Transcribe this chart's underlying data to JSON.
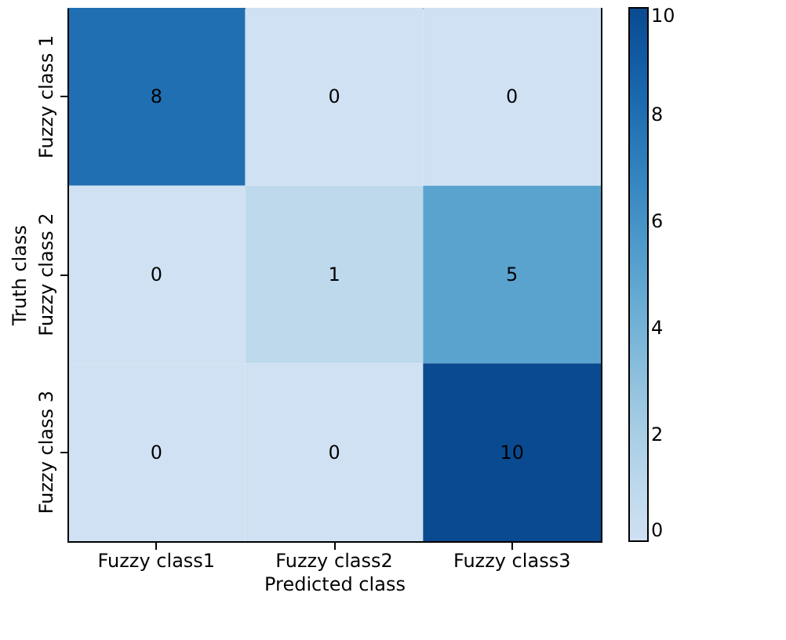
{
  "chart_data": {
    "type": "heatmap",
    "xlabel": "Predicted class",
    "ylabel": "Truth class",
    "categories": [
      "Fuzzy class1",
      "Fuzzy class2",
      "Fuzzy class3"
    ],
    "y_categories": [
      "Fuzzy class 1",
      "Fuzzy class 2",
      "Fuzzy class 3"
    ],
    "cells": [
      [
        8,
        0,
        0
      ],
      [
        0,
        1,
        5
      ],
      [
        0,
        0,
        10
      ]
    ],
    "clim": [
      0,
      10
    ],
    "cticks": [
      0,
      2,
      4,
      6,
      8,
      10
    ],
    "data_labels": true
  }
}
